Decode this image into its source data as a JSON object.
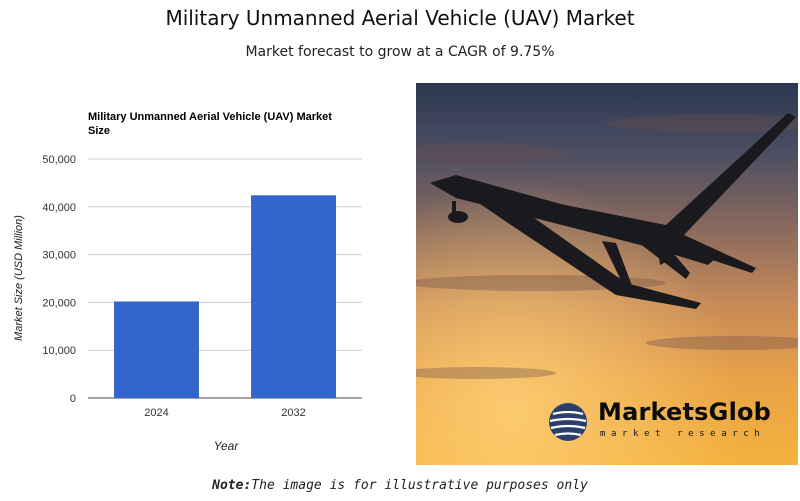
{
  "header": {
    "title": "Military Unmanned Aerial Vehicle (UAV) Market",
    "subtitle": "Market forecast to grow at a CAGR of 9.75%"
  },
  "chart_data": {
    "type": "bar",
    "title": "Military Unmanned Aerial Vehicle (UAV) Market Size",
    "title_lines": [
      "Military Unmanned Aerial Vehicle (UAV) Market",
      "Size"
    ],
    "xlabel": "Year",
    "ylabel": "Market Size (USD Million)",
    "categories": [
      "2024",
      "2032"
    ],
    "values": [
      20200,
      42400
    ],
    "ylim": [
      0,
      50000
    ],
    "yticks": [
      0,
      10000,
      20000,
      30000,
      40000,
      50000
    ],
    "ytick_labels": [
      "0",
      "10,000",
      "20,000",
      "30,000",
      "40,000",
      "50,000"
    ],
    "bar_color": "#3366cc",
    "grid": true,
    "legend": "none"
  },
  "image": {
    "description_icon": "military-drone-photo-icon",
    "brand_name": "MarketsGlob",
    "brand_tagline": "market research"
  },
  "footer": {
    "note_label": "Note:",
    "note_text": "The image is for illustrative purposes only"
  }
}
